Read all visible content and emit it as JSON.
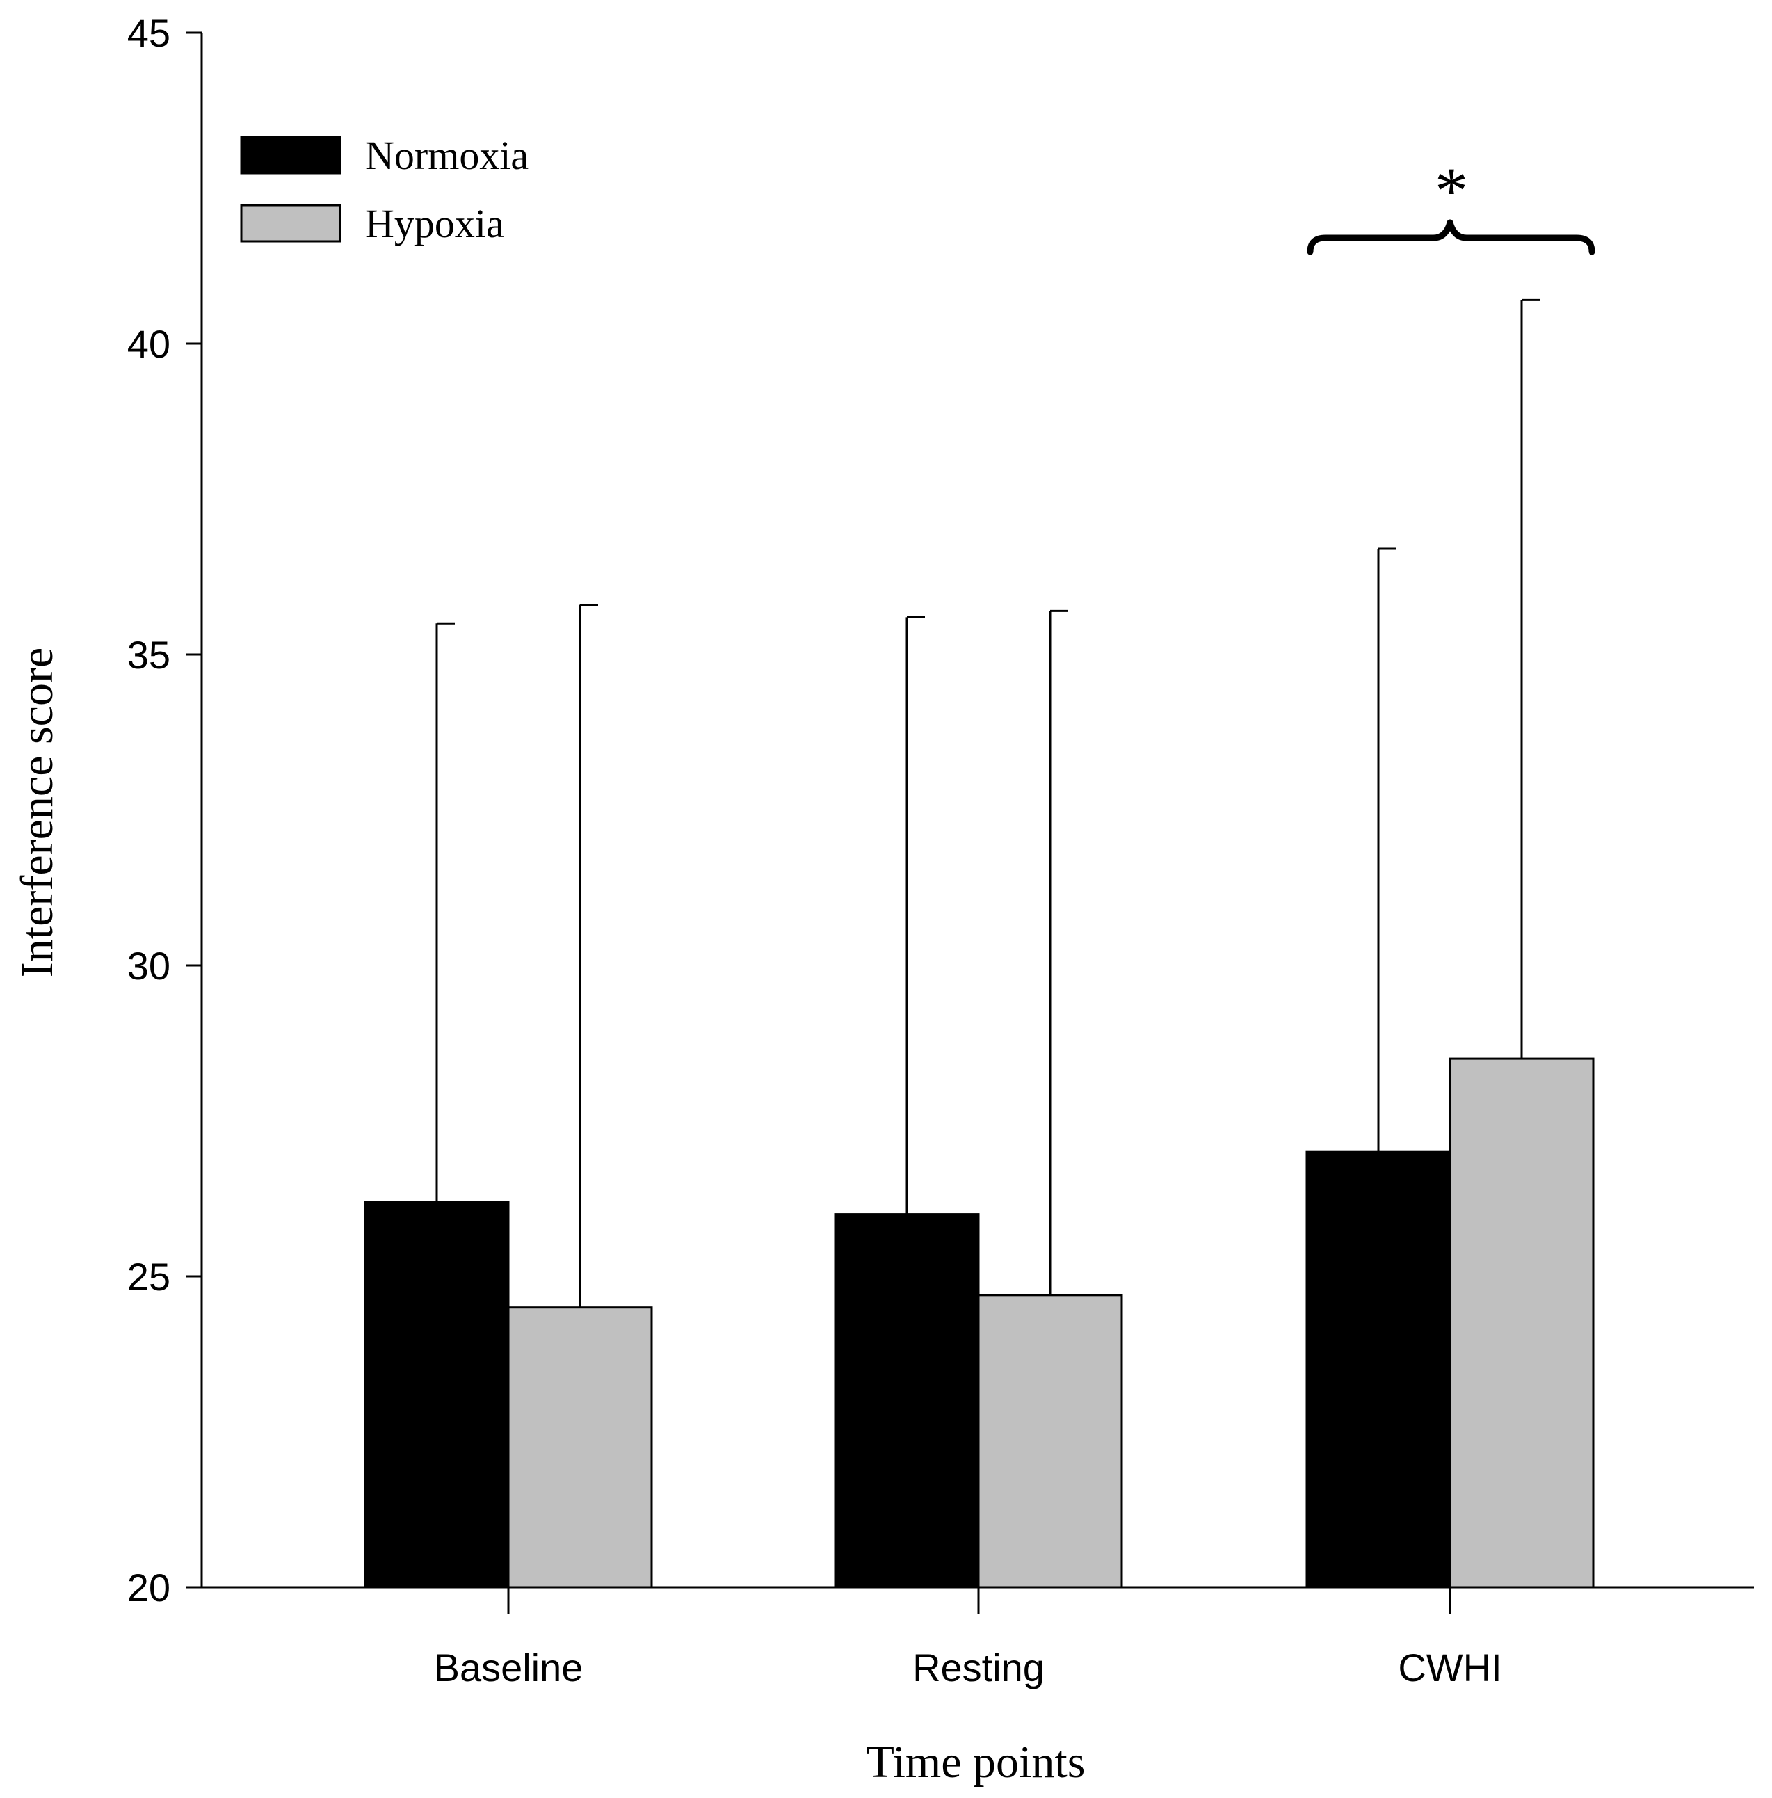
{
  "chart_data": {
    "type": "bar",
    "title": "",
    "xlabel": "Time points",
    "ylabel": "Interference score",
    "ylim": [
      20,
      45
    ],
    "yticks": [
      20,
      25,
      30,
      35,
      40,
      45
    ],
    "categories": [
      "Baseline",
      "Resting",
      "CWHI"
    ],
    "series": [
      {
        "name": "Normoxia",
        "color": "#000000",
        "values": [
          26.2,
          26.0,
          27.0
        ],
        "error_upper": [
          35.5,
          35.6,
          36.7
        ]
      },
      {
        "name": "Hypoxia",
        "color": "#c0c0c0",
        "values": [
          24.5,
          24.7,
          28.5
        ],
        "error_upper": [
          35.8,
          35.7,
          40.7
        ]
      }
    ],
    "legend": {
      "position": "top-left"
    },
    "grid": false,
    "annotations": [
      {
        "text": "*",
        "category": "CWHI",
        "type": "brace",
        "y": 41.7
      }
    ]
  }
}
